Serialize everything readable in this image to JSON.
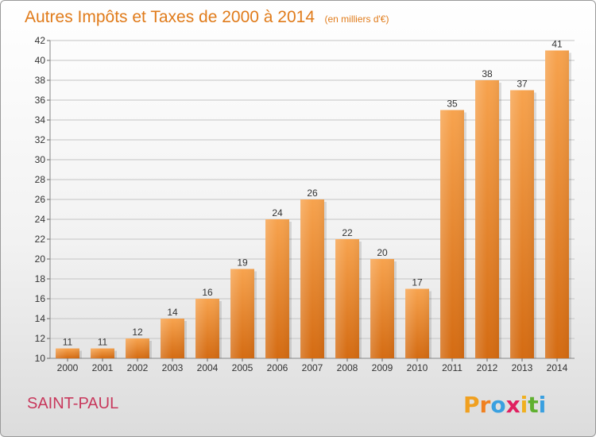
{
  "chart_data": {
    "type": "bar",
    "title": "Autres Impôts et Taxes de 2000 à 2014",
    "subtitle": "(en milliers d'€)",
    "categories": [
      "2000",
      "2001",
      "2002",
      "2003",
      "2004",
      "2005",
      "2006",
      "2007",
      "2008",
      "2009",
      "2010",
      "2011",
      "2012",
      "2013",
      "2014"
    ],
    "values": [
      11,
      11,
      12,
      14,
      16,
      19,
      24,
      26,
      22,
      20,
      17,
      35,
      38,
      37,
      41
    ],
    "ylim": [
      10,
      42
    ],
    "yticks": [
      10,
      12,
      14,
      16,
      18,
      20,
      22,
      24,
      26,
      28,
      30,
      32,
      34,
      36,
      38,
      40,
      42
    ],
    "grid": true,
    "bar_color": "#f0923a"
  },
  "footer": {
    "commune": "SAINT-PAUL",
    "brand_letters": [
      "P",
      "r",
      "o",
      "x",
      "i",
      "t",
      "i"
    ],
    "brand_colors": [
      "#f0a020",
      "#f08020",
      "#3aa0e0",
      "#e02060",
      "#f0b020",
      "#60b030",
      "#3aa0e0"
    ]
  }
}
